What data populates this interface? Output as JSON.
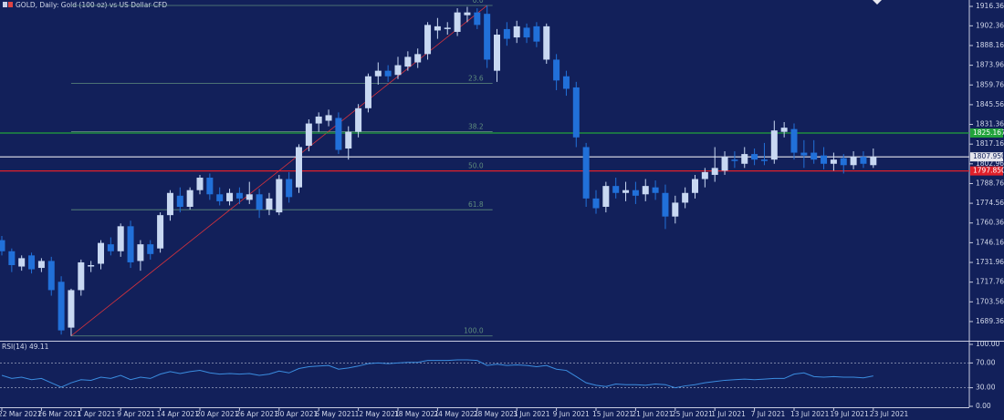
{
  "chart_data": {
    "type": "candlestick",
    "title": "GOLD, Daily:  Gold (100 oz) vs US Dollar CFD",
    "up_color": "#c8d8f2",
    "down_color": "#2170d9",
    "categories": [
      "22 Mar 2021",
      null,
      null,
      null,
      "26 Mar 2021",
      null,
      null,
      null,
      "1 Apr 2021",
      null,
      null,
      null,
      "9 Apr 2021",
      null,
      null,
      null,
      "14 Apr 2021",
      null,
      null,
      null,
      "20 Apr 2021",
      null,
      null,
      null,
      "26 Apr 2021",
      null,
      null,
      null,
      "30 Apr 2021",
      null,
      null,
      null,
      "6 May 2021",
      null,
      null,
      null,
      "12 May 2021",
      null,
      null,
      null,
      "18 May 2021",
      null,
      null,
      null,
      "24 May 2021",
      null,
      null,
      null,
      "28 May 2021",
      null,
      null,
      null,
      "3 Jun 2021",
      null,
      null,
      null,
      "9 Jun 2021",
      null,
      null,
      null,
      "15 Jun 2021",
      null,
      null,
      null,
      "21 Jun 2021",
      null,
      null,
      null,
      "25 Jun 2021",
      null,
      null,
      null,
      "1 Jul 2021",
      null,
      null,
      null,
      "7 Jul 2021",
      null,
      null,
      null,
      "13 Jul 2021",
      null,
      null,
      null,
      "19 Jul 2021",
      null,
      null,
      null,
      "23 Jul 2021"
    ],
    "open": [
      1748,
      1740,
      1729,
      1737,
      1728,
      1733,
      1718,
      1685,
      1712,
      1729,
      1731,
      1745,
      1740,
      1758,
      1733,
      1745,
      1742,
      1766,
      1780,
      1772,
      1784,
      1793,
      1781,
      1776,
      1782,
      1777,
      1781,
      1770,
      1768,
      1792,
      1786,
      1816,
      1832,
      1834,
      1836,
      1814,
      1826,
      1843,
      1866,
      1870,
      1867,
      1873,
      1876,
      1882,
      1899,
      1900,
      1898,
      1910,
      1912,
      1911,
      1870,
      1900,
      1894,
      1901,
      1902,
      1878,
      1878,
      1866,
      1858,
      1815,
      1778,
      1772,
      1787,
      1782,
      1784,
      1781,
      1786,
      1782,
      1765,
      1775,
      1782,
      1792,
      1795,
      1798,
      1806,
      1803,
      1810,
      1806,
      1806,
      1826,
      1828,
      1811,
      1811,
      1809,
      1803,
      1807,
      1802,
      1808,
      1802
    ],
    "high": [
      1751,
      1742,
      1737,
      1739,
      1735,
      1736,
      1722,
      1713,
      1734,
      1733,
      1748,
      1750,
      1760,
      1762,
      1748,
      1748,
      1768,
      1784,
      1786,
      1786,
      1795,
      1796,
      1786,
      1785,
      1786,
      1790,
      1785,
      1782,
      1795,
      1797,
      1817,
      1835,
      1840,
      1842,
      1840,
      1830,
      1846,
      1868,
      1876,
      1874,
      1880,
      1884,
      1886,
      1905,
      1908,
      1905,
      1915,
      1916,
      1915,
      1917,
      1900,
      1905,
      1906,
      1904,
      1905,
      1904,
      1882,
      1870,
      1862,
      1818,
      1784,
      1790,
      1793,
      1790,
      1790,
      1792,
      1791,
      1788,
      1780,
      1786,
      1795,
      1800,
      1815,
      1812,
      1812,
      1815,
      1814,
      1818,
      1834,
      1833,
      1832,
      1820,
      1820,
      1815,
      1811,
      1810,
      1812,
      1812,
      1814
    ],
    "low": [
      1737,
      1725,
      1726,
      1724,
      1725,
      1708,
      1680,
      1679,
      1708,
      1725,
      1727,
      1737,
      1736,
      1728,
      1726,
      1734,
      1739,
      1762,
      1768,
      1770,
      1781,
      1777,
      1773,
      1773,
      1774,
      1774,
      1764,
      1766,
      1766,
      1775,
      1782,
      1812,
      1826,
      1830,
      1810,
      1806,
      1822,
      1840,
      1860,
      1862,
      1864,
      1870,
      1872,
      1878,
      1893,
      1896,
      1895,
      1905,
      1900,
      1872,
      1862,
      1888,
      1890,
      1890,
      1887,
      1875,
      1856,
      1852,
      1815,
      1772,
      1767,
      1768,
      1778,
      1776,
      1774,
      1776,
      1777,
      1756,
      1760,
      1771,
      1778,
      1786,
      1790,
      1795,
      1800,
      1800,
      1802,
      1802,
      1803,
      1822,
      1806,
      1800,
      1803,
      1799,
      1798,
      1796,
      1799,
      1800,
      1800
    ],
    "close": [
      1740,
      1730,
      1735,
      1727,
      1733,
      1712,
      1683,
      1712,
      1732,
      1730,
      1746,
      1740,
      1758,
      1732,
      1745,
      1738,
      1766,
      1782,
      1772,
      1784,
      1793,
      1781,
      1776,
      1782,
      1778,
      1781,
      1770,
      1778,
      1792,
      1779,
      1815,
      1832,
      1837,
      1838,
      1813,
      1826,
      1843,
      1866,
      1870,
      1866,
      1874,
      1880,
      1882,
      1903,
      1902,
      1901,
      1912,
      1912,
      1903,
      1878,
      1896,
      1893,
      1902,
      1894,
      1891,
      1902,
      1863,
      1857,
      1822,
      1778,
      1771,
      1787,
      1782,
      1784,
      1780,
      1787,
      1782,
      1765,
      1775,
      1782,
      1792,
      1797,
      1800,
      1808,
      1805,
      1810,
      1806,
      1805,
      1827,
      1829,
      1811,
      1809,
      1806,
      1803,
      1806,
      1802,
      1808,
      1803,
      1808
    ],
    "ylim": [
      1676.2,
      1920.95
    ],
    "yticks": [
      {
        "value": 1916.36,
        "label": "1916.360"
      },
      {
        "value": 1902.36,
        "label": "1902.360"
      },
      {
        "value": 1888.16,
        "label": "1888.160"
      },
      {
        "value": 1873.96,
        "label": "1873.960"
      },
      {
        "value": 1859.76,
        "label": "1859.760"
      },
      {
        "value": 1845.56,
        "label": "1845.560"
      },
      {
        "value": 1831.36,
        "label": "1831.360"
      },
      {
        "value": 1817.16,
        "label": "1817.160"
      },
      {
        "value": 1802.96,
        "label": "1802.960"
      },
      {
        "value": 1788.76,
        "label": "1788.760"
      },
      {
        "value": 1774.56,
        "label": "1774.560"
      },
      {
        "value": 1760.36,
        "label": "1760.360"
      },
      {
        "value": 1746.16,
        "label": "1746.160"
      },
      {
        "value": 1731.96,
        "label": "1731.960"
      },
      {
        "value": 1717.76,
        "label": "1717.760"
      },
      {
        "value": 1703.56,
        "label": "1703.560"
      },
      {
        "value": 1689.36,
        "label": "1689.360"
      }
    ],
    "price_levels": [
      {
        "value": 1825.167,
        "label": "1825.167",
        "color": "#22a33b"
      },
      {
        "value": 1807.95,
        "label": "1807.950",
        "color": "#e6e6ee"
      },
      {
        "value": 1797.85,
        "label": "1797.850",
        "color": "#e0202a"
      }
    ],
    "trendline_color": "#d8323c",
    "fibonacci": {
      "color": "#5f8c7c",
      "labels": [
        "0.0",
        "23.6",
        "38.2",
        "50.0",
        "61.8",
        "100.0"
      ]
    },
    "indicator": {
      "type": "line",
      "label": "RSI(14) 49.11",
      "color": "#3b8de0",
      "values": [
        50,
        45,
        47,
        43,
        45,
        38,
        31,
        38,
        43,
        42,
        47,
        45,
        50,
        43,
        47,
        45,
        52,
        56,
        53,
        56,
        58,
        54,
        52,
        53,
        52,
        53,
        50,
        52,
        57,
        54,
        61,
        64,
        65,
        66,
        60,
        62,
        65,
        69,
        70,
        69,
        70,
        71,
        71,
        74,
        74,
        74,
        75,
        75,
        74,
        66,
        68,
        66,
        67,
        66,
        64,
        66,
        60,
        58,
        48,
        38,
        34,
        32,
        36,
        35,
        35,
        34,
        36,
        35,
        30,
        33,
        35,
        38,
        40,
        42,
        43,
        44,
        43,
        44,
        45,
        45,
        52,
        54,
        48,
        47,
        48,
        47,
        47,
        46,
        49.11
      ],
      "ylim": [
        0,
        100
      ],
      "yticks": [
        {
          "value": 100,
          "label": "100.00"
        },
        {
          "value": 70,
          "label": "70.00"
        },
        {
          "value": 30,
          "label": "30.00"
        },
        {
          "value": 0,
          "label": "0.00"
        }
      ],
      "dotted_inner_ticks": true
    }
  }
}
